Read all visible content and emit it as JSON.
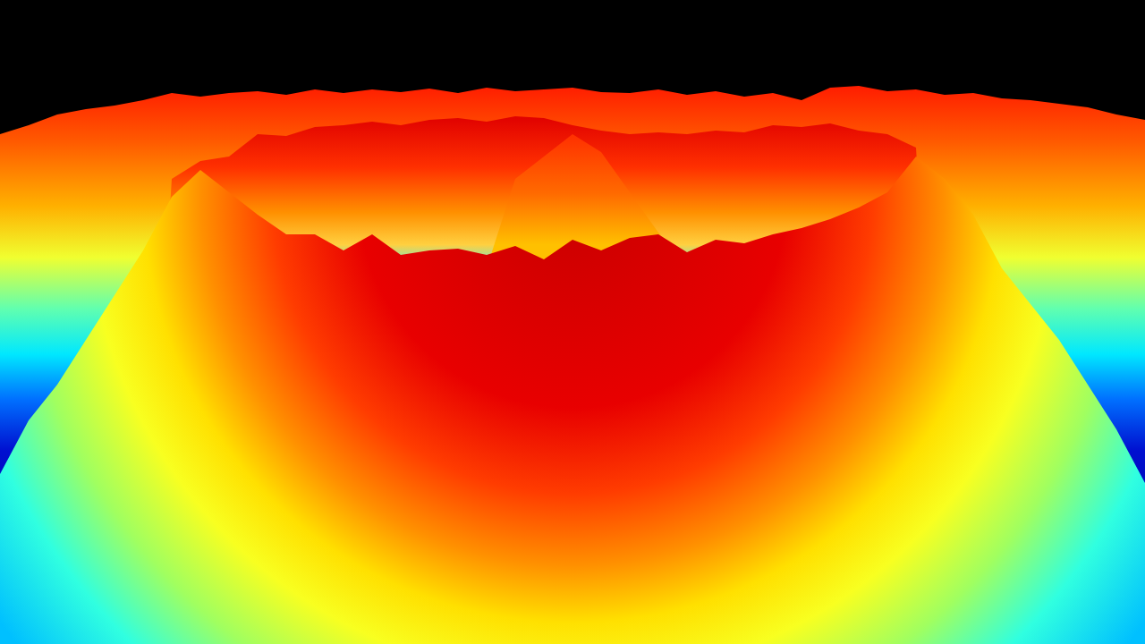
{
  "chart_data": {
    "type": "area",
    "x": [
      0,
      32,
      64,
      96,
      128,
      160,
      192,
      224,
      256,
      288,
      320,
      352,
      384,
      416,
      448,
      480,
      512,
      544,
      576,
      608,
      640,
      672,
      704,
      736,
      768,
      800,
      832,
      864,
      896,
      928,
      960,
      992,
      1024,
      1056,
      1088,
      1120,
      1152,
      1184,
      1216,
      1248,
      1280
    ],
    "series": [
      {
        "values": [
          570,
          580,
          592,
          598,
          602,
          608,
          616,
          612,
          616,
          618,
          614,
          620,
          616,
          620,
          617,
          621,
          616,
          622,
          618,
          620,
          622,
          617,
          616,
          620,
          614,
          618,
          612,
          616,
          608,
          622,
          624,
          618,
          620,
          614,
          616,
          610,
          608,
          604,
          600,
          592,
          586
        ]
      },
      {
        "values": [
          0,
          0,
          0,
          0,
          0,
          0,
          520,
          540,
          545,
          570,
          568,
          578,
          580,
          584,
          580,
          586,
          588,
          584,
          590,
          588,
          580,
          574,
          570,
          572,
          570,
          574,
          572,
          580,
          578,
          582,
          574,
          570,
          555,
          0,
          0,
          0,
          0,
          0,
          0,
          0,
          0
        ]
      },
      {
        "values": [
          0,
          0,
          0,
          0,
          0,
          0,
          0,
          0,
          0,
          0,
          0,
          0,
          0,
          0,
          0,
          0,
          0,
          420,
          520,
          545,
          570,
          550,
          505,
          460,
          420,
          0,
          0,
          0,
          0,
          0,
          0,
          0,
          0,
          0,
          0,
          0,
          0,
          0,
          0,
          0,
          0
        ]
      },
      {
        "values": [
          190,
          250,
          290,
          340,
          390,
          440,
          500,
          530,
          505,
          480,
          458,
          458,
          440,
          458,
          435,
          440,
          442,
          435,
          445,
          430,
          452,
          440,
          454,
          458,
          438,
          452,
          448,
          458,
          465,
          475,
          488,
          505,
          545,
          520,
          480,
          420,
          380,
          340,
          290,
          240,
          180
        ]
      }
    ],
    "xlim": [
      0,
      1280
    ],
    "ylim": [
      0,
      720
    ],
    "tick_labels": false,
    "grid": false,
    "stacked": false
  }
}
